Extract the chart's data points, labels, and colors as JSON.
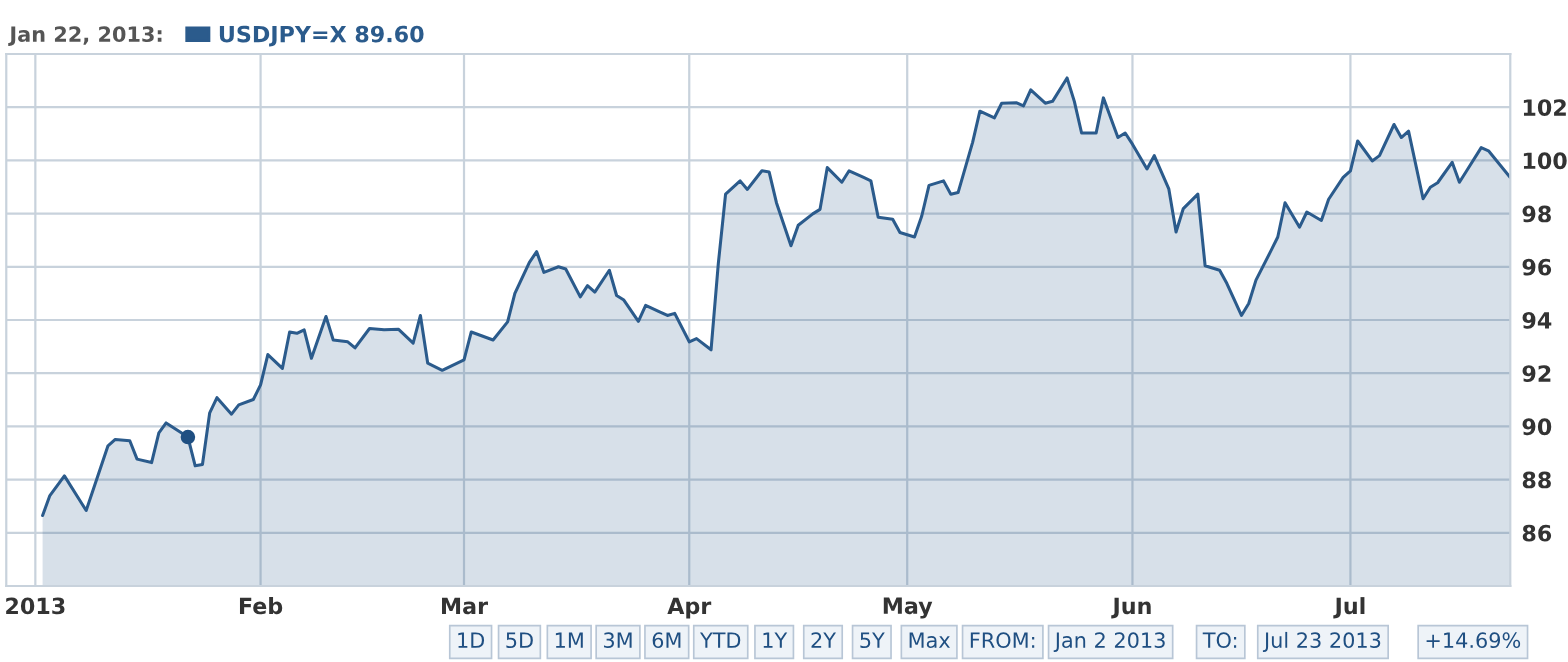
{
  "chart_data": {
    "type": "area",
    "x": [
      "2013-01-02",
      "2013-01-03",
      "2013-01-05",
      "2013-01-07",
      "2013-01-08",
      "2013-01-11",
      "2013-01-12",
      "2013-01-14",
      "2013-01-15",
      "2013-01-17",
      "2013-01-18",
      "2013-01-19",
      "2013-01-22",
      "2013-01-23",
      "2013-01-24",
      "2013-01-25",
      "2013-01-26",
      "2013-01-28",
      "2013-01-29",
      "2013-01-31",
      "2013-02-01",
      "2013-02-02",
      "2013-02-04",
      "2013-02-05",
      "2013-02-06",
      "2013-02-07",
      "2013-02-08",
      "2013-02-10",
      "2013-02-11",
      "2013-02-13",
      "2013-02-14",
      "2013-02-16",
      "2013-02-18",
      "2013-02-20",
      "2013-02-22",
      "2013-02-23",
      "2013-02-24",
      "2013-02-26",
      "2013-03-01",
      "2013-03-02",
      "2013-03-05",
      "2013-03-07",
      "2013-03-08",
      "2013-03-10",
      "2013-03-11",
      "2013-03-12",
      "2013-03-14",
      "2013-03-15",
      "2013-03-17",
      "2013-03-18",
      "2013-03-19",
      "2013-03-21",
      "2013-03-22",
      "2013-03-23",
      "2013-03-25",
      "2013-03-26",
      "2013-03-28",
      "2013-03-29",
      "2013-03-30",
      "2013-04-01",
      "2013-04-02",
      "2013-04-04",
      "2013-04-05",
      "2013-04-06",
      "2013-04-08",
      "2013-04-09",
      "2013-04-11",
      "2013-04-12",
      "2013-04-13",
      "2013-04-15",
      "2013-04-16",
      "2013-04-18",
      "2013-04-19",
      "2013-04-20",
      "2013-04-22",
      "2013-04-23",
      "2013-04-25",
      "2013-04-26",
      "2013-04-27",
      "2013-04-29",
      "2013-04-30",
      "2013-05-02",
      "2013-05-03",
      "2013-05-04",
      "2013-05-06",
      "2013-05-07",
      "2013-05-08",
      "2013-05-10",
      "2013-05-11",
      "2013-05-13",
      "2013-05-14",
      "2013-05-16",
      "2013-05-17",
      "2013-05-18",
      "2013-05-20",
      "2013-05-21",
      "2013-05-23",
      "2013-05-24",
      "2013-05-25",
      "2013-05-27",
      "2013-05-28",
      "2013-05-30",
      "2013-05-31",
      "2013-06-01",
      "2013-06-03",
      "2013-06-04",
      "2013-06-06",
      "2013-06-07",
      "2013-06-08",
      "2013-06-10",
      "2013-06-11",
      "2013-06-13",
      "2013-06-14",
      "2013-06-16",
      "2013-06-17",
      "2013-06-18",
      "2013-06-20",
      "2013-06-21",
      "2013-06-22",
      "2013-06-24",
      "2013-06-25",
      "2013-06-27",
      "2013-06-28",
      "2013-06-30",
      "2013-07-01",
      "2013-07-02",
      "2013-07-04",
      "2013-07-05",
      "2013-07-07",
      "2013-07-08",
      "2013-07-09",
      "2013-07-11",
      "2013-07-12",
      "2013-07-13",
      "2013-07-15",
      "2013-07-16",
      "2013-07-17",
      "2013-07-19",
      "2013-07-20",
      "2013-07-23"
    ],
    "series": [
      {
        "name": "USDJPY=X",
        "color": "#2b5b8c",
        "values": [
          86.65,
          87.4,
          88.14,
          87.27,
          86.84,
          89.27,
          89.51,
          89.46,
          88.77,
          88.64,
          89.76,
          90.13,
          89.6,
          88.52,
          88.57,
          90.51,
          91.08,
          90.46,
          90.81,
          91.01,
          91.56,
          92.7,
          92.18,
          93.55,
          93.5,
          93.63,
          92.56,
          94.13,
          93.25,
          93.18,
          92.95,
          93.68,
          93.63,
          93.65,
          93.13,
          94.17,
          92.38,
          92.11,
          92.5,
          93.55,
          93.25,
          93.93,
          95.0,
          96.17,
          96.57,
          95.79,
          96.0,
          95.92,
          94.87,
          95.29,
          95.05,
          95.87,
          94.92,
          94.75,
          93.95,
          94.55,
          94.3,
          94.17,
          94.25,
          93.18,
          93.3,
          92.88,
          96.12,
          98.73,
          99.23,
          98.91,
          99.61,
          99.56,
          98.41,
          96.79,
          97.56,
          97.99,
          98.16,
          99.73,
          99.18,
          99.61,
          99.36,
          99.23,
          97.86,
          97.79,
          97.29,
          97.12,
          97.91,
          99.06,
          99.23,
          98.73,
          98.79,
          100.68,
          101.85,
          101.6,
          102.15,
          102.17,
          102.05,
          102.65,
          102.15,
          102.22,
          103.1,
          102.22,
          101.03,
          101.03,
          102.35,
          100.86,
          101.03,
          100.61,
          99.68,
          100.18,
          98.93,
          97.31,
          98.19,
          98.73,
          96.04,
          95.87,
          95.37,
          94.17,
          94.62,
          95.5,
          96.57,
          97.12,
          98.41,
          97.49,
          98.06,
          97.74,
          98.54,
          99.36,
          99.61,
          100.73,
          99.98,
          100.18,
          101.35,
          100.86,
          101.1,
          98.56,
          98.99,
          99.16,
          99.93,
          99.18,
          99.61,
          100.48,
          100.36,
          99.36
        ]
      },
      {
        "type": "scatter",
        "color": "#1f4f82",
        "x": [
          "2013-01-22"
        ],
        "values": [
          89.6
        ]
      }
    ],
    "xlim": [
      "2012-12-28",
      "2013-07-23"
    ],
    "xticks": [
      {
        "value": "2013-01-01",
        "label": "2013"
      },
      {
        "value": "2013-02-01",
        "label": "Feb"
      },
      {
        "value": "2013-03-01",
        "label": "Mar"
      },
      {
        "value": "2013-04-01",
        "label": "Apr"
      },
      {
        "value": "2013-05-01",
        "label": "May"
      },
      {
        "value": "2013-06-01",
        "label": "Jun"
      },
      {
        "value": "2013-07-01",
        "label": "Jul"
      }
    ],
    "ylim": [
      84,
      104
    ],
    "yticks": [
      86,
      88,
      90,
      92,
      94,
      96,
      98,
      100,
      102
    ],
    "grid": true,
    "legend": "top left",
    "annotations": [
      "Jan 22, 2013:",
      "89.60",
      "1D",
      "5D",
      "1M",
      "3M",
      "6M",
      "YTD",
      "1Y",
      "2Y",
      "5Y",
      "Max",
      "FROM:",
      "Jan 2 2013",
      "TO:",
      "Jul 23 2013",
      "+14.69%"
    ]
  }
}
